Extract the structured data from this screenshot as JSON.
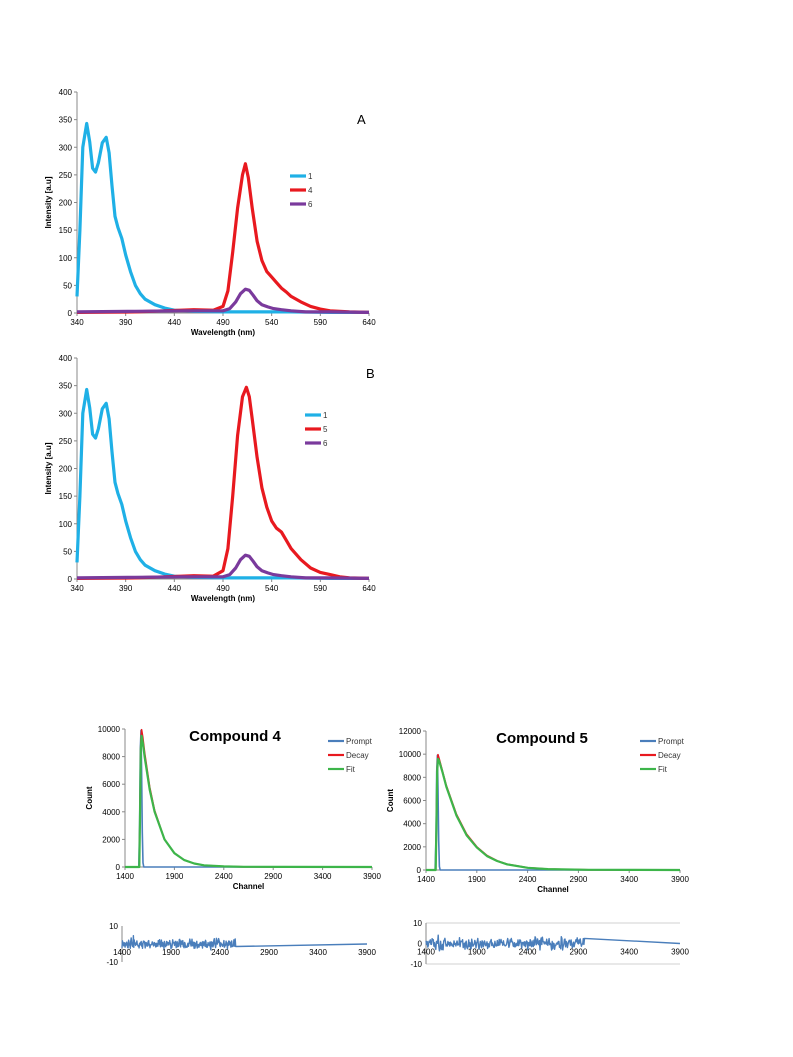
{
  "chart_data": [
    {
      "type": "line",
      "panel_label": "A",
      "xlabel": "Wavelength (nm)",
      "ylabel": "Intensity [a.u]",
      "xlim": [
        340,
        640
      ],
      "ylim": [
        0,
        400
      ],
      "xticks": [
        340,
        390,
        440,
        490,
        540,
        590,
        640
      ],
      "yticks": [
        0,
        50,
        100,
        150,
        200,
        250,
        300,
        350,
        400
      ],
      "legend_position": "right",
      "series": [
        {
          "name": "1",
          "color": "#1FB0E6",
          "x": [
            340,
            343,
            346,
            350,
            353,
            356,
            359,
            362,
            366,
            370,
            373,
            376,
            379,
            382,
            386,
            390,
            395,
            400,
            405,
            410,
            420,
            430,
            440,
            460,
            490,
            520,
            560,
            600,
            640
          ],
          "y": [
            30,
            150,
            300,
            343,
            310,
            262,
            255,
            272,
            308,
            318,
            290,
            230,
            175,
            155,
            135,
            105,
            75,
            50,
            35,
            25,
            15,
            9,
            5,
            3,
            2,
            2,
            2,
            1,
            1
          ]
        },
        {
          "name": "4",
          "color": "#E8191F",
          "x": [
            340,
            400,
            430,
            460,
            480,
            490,
            495,
            500,
            505,
            510,
            513,
            516,
            520,
            525,
            530,
            535,
            540,
            545,
            550,
            555,
            560,
            570,
            580,
            590,
            600,
            610,
            620,
            640
          ],
          "y": [
            1,
            2,
            4,
            6,
            5,
            12,
            40,
            110,
            190,
            250,
            270,
            245,
            190,
            130,
            95,
            75,
            65,
            55,
            45,
            38,
            30,
            20,
            12,
            7,
            4,
            3,
            2,
            1
          ]
        },
        {
          "name": "6",
          "color": "#7A3A9C",
          "x": [
            340,
            400,
            450,
            490,
            497,
            503,
            508,
            513,
            517,
            521,
            525,
            530,
            536,
            542,
            550,
            560,
            575,
            600,
            640
          ],
          "y": [
            2,
            3,
            4,
            4,
            8,
            20,
            35,
            43,
            41,
            32,
            22,
            15,
            11,
            8,
            6,
            4,
            2,
            2,
            1
          ]
        }
      ]
    },
    {
      "type": "line",
      "panel_label": "B",
      "xlabel": "Wavelength (nm)",
      "ylabel": "Intensity [a.u]",
      "xlim": [
        340,
        640
      ],
      "ylim": [
        0,
        400
      ],
      "xticks": [
        340,
        390,
        440,
        490,
        540,
        590,
        640
      ],
      "yticks": [
        0,
        50,
        100,
        150,
        200,
        250,
        300,
        350,
        400
      ],
      "legend_position": "right",
      "series": [
        {
          "name": "1",
          "color": "#1FB0E6",
          "x": [
            340,
            343,
            346,
            350,
            353,
            356,
            359,
            362,
            366,
            370,
            373,
            376,
            379,
            382,
            386,
            390,
            395,
            400,
            405,
            410,
            420,
            430,
            440,
            460,
            490,
            520,
            560,
            600,
            640
          ],
          "y": [
            30,
            150,
            300,
            343,
            310,
            262,
            255,
            272,
            308,
            318,
            290,
            230,
            175,
            155,
            135,
            105,
            75,
            50,
            35,
            25,
            15,
            9,
            5,
            3,
            2,
            2,
            2,
            1,
            1
          ]
        },
        {
          "name": "5",
          "color": "#E8191F",
          "x": [
            340,
            400,
            430,
            460,
            480,
            490,
            495,
            500,
            505,
            510,
            514,
            517,
            520,
            525,
            530,
            535,
            540,
            545,
            550,
            555,
            560,
            570,
            580,
            590,
            600,
            610,
            620,
            640
          ],
          "y": [
            1,
            2,
            4,
            6,
            5,
            15,
            55,
            150,
            260,
            330,
            347,
            330,
            290,
            220,
            165,
            130,
            105,
            92,
            85,
            70,
            55,
            35,
            20,
            12,
            8,
            4,
            2,
            1
          ]
        },
        {
          "name": "6",
          "color": "#7A3A9C",
          "x": [
            340,
            400,
            450,
            490,
            497,
            503,
            508,
            513,
            517,
            521,
            525,
            530,
            536,
            542,
            550,
            560,
            575,
            600,
            640
          ],
          "y": [
            2,
            3,
            4,
            4,
            8,
            20,
            35,
            43,
            41,
            32,
            22,
            15,
            11,
            8,
            6,
            4,
            2,
            2,
            1
          ]
        }
      ]
    },
    {
      "type": "line",
      "title": "Compound 4",
      "xlabel": "Channel",
      "ylabel": "Count",
      "xlim": [
        1400,
        3900
      ],
      "ylim": [
        0,
        10000
      ],
      "xticks": [
        1400,
        1900,
        2400,
        2900,
        3400,
        3900
      ],
      "yticks": [
        0,
        2000,
        4000,
        6000,
        8000,
        10000
      ],
      "legend_position": "top-right",
      "series": [
        {
          "name": "Prompt",
          "color": "#4A7EBB",
          "x": [
            1400,
            1540,
            1548,
            1555,
            1562,
            1568,
            1575,
            1582,
            1590,
            3900
          ],
          "y": [
            0,
            0,
            3000,
            8500,
            9900,
            7000,
            2500,
            300,
            0,
            0
          ]
        },
        {
          "name": "Decay",
          "color": "#E8191F",
          "x": [
            1400,
            1545,
            1552,
            1560,
            1568,
            1580,
            1600,
            1650,
            1700,
            1800,
            1900,
            2000,
            2100,
            2200,
            2400,
            2600,
            3000,
            3900
          ],
          "y": [
            0,
            0,
            4000,
            9000,
            9950,
            9400,
            8200,
            5800,
            4100,
            2000,
            1000,
            500,
            250,
            120,
            40,
            15,
            5,
            0
          ]
        },
        {
          "name": "Fit",
          "color": "#3DB54A",
          "x": [
            1400,
            1545,
            1552,
            1560,
            1568,
            1580,
            1600,
            1650,
            1700,
            1800,
            1900,
            2000,
            2100,
            2200,
            2400,
            2600,
            3000,
            3900
          ],
          "y": [
            0,
            0,
            3500,
            8500,
            9500,
            9000,
            7900,
            5600,
            4000,
            2000,
            1000,
            500,
            250,
            120,
            40,
            15,
            5,
            0
          ]
        }
      ]
    },
    {
      "type": "line",
      "subtype": "residuals",
      "xlim": [
        1400,
        3900
      ],
      "ylim": [
        -10,
        10
      ],
      "xticks": [
        1400,
        1900,
        2400,
        2900,
        3400,
        3900
      ],
      "yticks": [
        -10,
        10
      ],
      "series": [
        {
          "color": "#4A7EBB",
          "x_start": 1400,
          "x_noise_end": 2560,
          "amplitude": 2.5
        }
      ]
    },
    {
      "type": "line",
      "title": "Compound 5",
      "xlabel": "Channel",
      "ylabel": "Count",
      "xlim": [
        1400,
        3900
      ],
      "ylim": [
        0,
        12000
      ],
      "xticks": [
        1400,
        1900,
        2400,
        2900,
        3400,
        3900
      ],
      "yticks": [
        0,
        2000,
        4000,
        6000,
        8000,
        10000,
        12000
      ],
      "legend_position": "top-right",
      "series": [
        {
          "name": "Prompt",
          "color": "#4A7EBB",
          "x": [
            1400,
            1490,
            1498,
            1505,
            1512,
            1518,
            1525,
            1532,
            1540,
            3900
          ],
          "y": [
            0,
            0,
            3000,
            8500,
            9900,
            7000,
            2500,
            300,
            0,
            0
          ]
        },
        {
          "name": "Decay",
          "color": "#E8191F",
          "x": [
            1400,
            1495,
            1502,
            1510,
            1518,
            1530,
            1560,
            1600,
            1700,
            1800,
            1900,
            2000,
            2100,
            2200,
            2400,
            2600,
            3000,
            3900
          ],
          "y": [
            0,
            0,
            4000,
            9000,
            9950,
            9600,
            8600,
            7300,
            4800,
            3100,
            2000,
            1250,
            800,
            500,
            200,
            80,
            15,
            0
          ]
        },
        {
          "name": "Fit",
          "color": "#3DB54A",
          "x": [
            1400,
            1495,
            1502,
            1510,
            1518,
            1530,
            1560,
            1600,
            1700,
            1800,
            1900,
            2000,
            2100,
            2200,
            2400,
            2600,
            3000,
            3900
          ],
          "y": [
            0,
            0,
            3500,
            8500,
            9600,
            9400,
            8500,
            7200,
            4700,
            3000,
            1950,
            1200,
            780,
            480,
            190,
            75,
            15,
            0
          ]
        }
      ]
    },
    {
      "type": "line",
      "subtype": "residuals",
      "xlim": [
        1400,
        3900
      ],
      "ylim": [
        -10,
        10
      ],
      "xticks": [
        1400,
        1900,
        2400,
        2900,
        3400,
        3900
      ],
      "yticks": [
        -10,
        0,
        10
      ],
      "series": [
        {
          "color": "#4A7EBB",
          "x_start": 1400,
          "x_noise_end": 2960,
          "amplitude": 2.5
        }
      ]
    }
  ]
}
